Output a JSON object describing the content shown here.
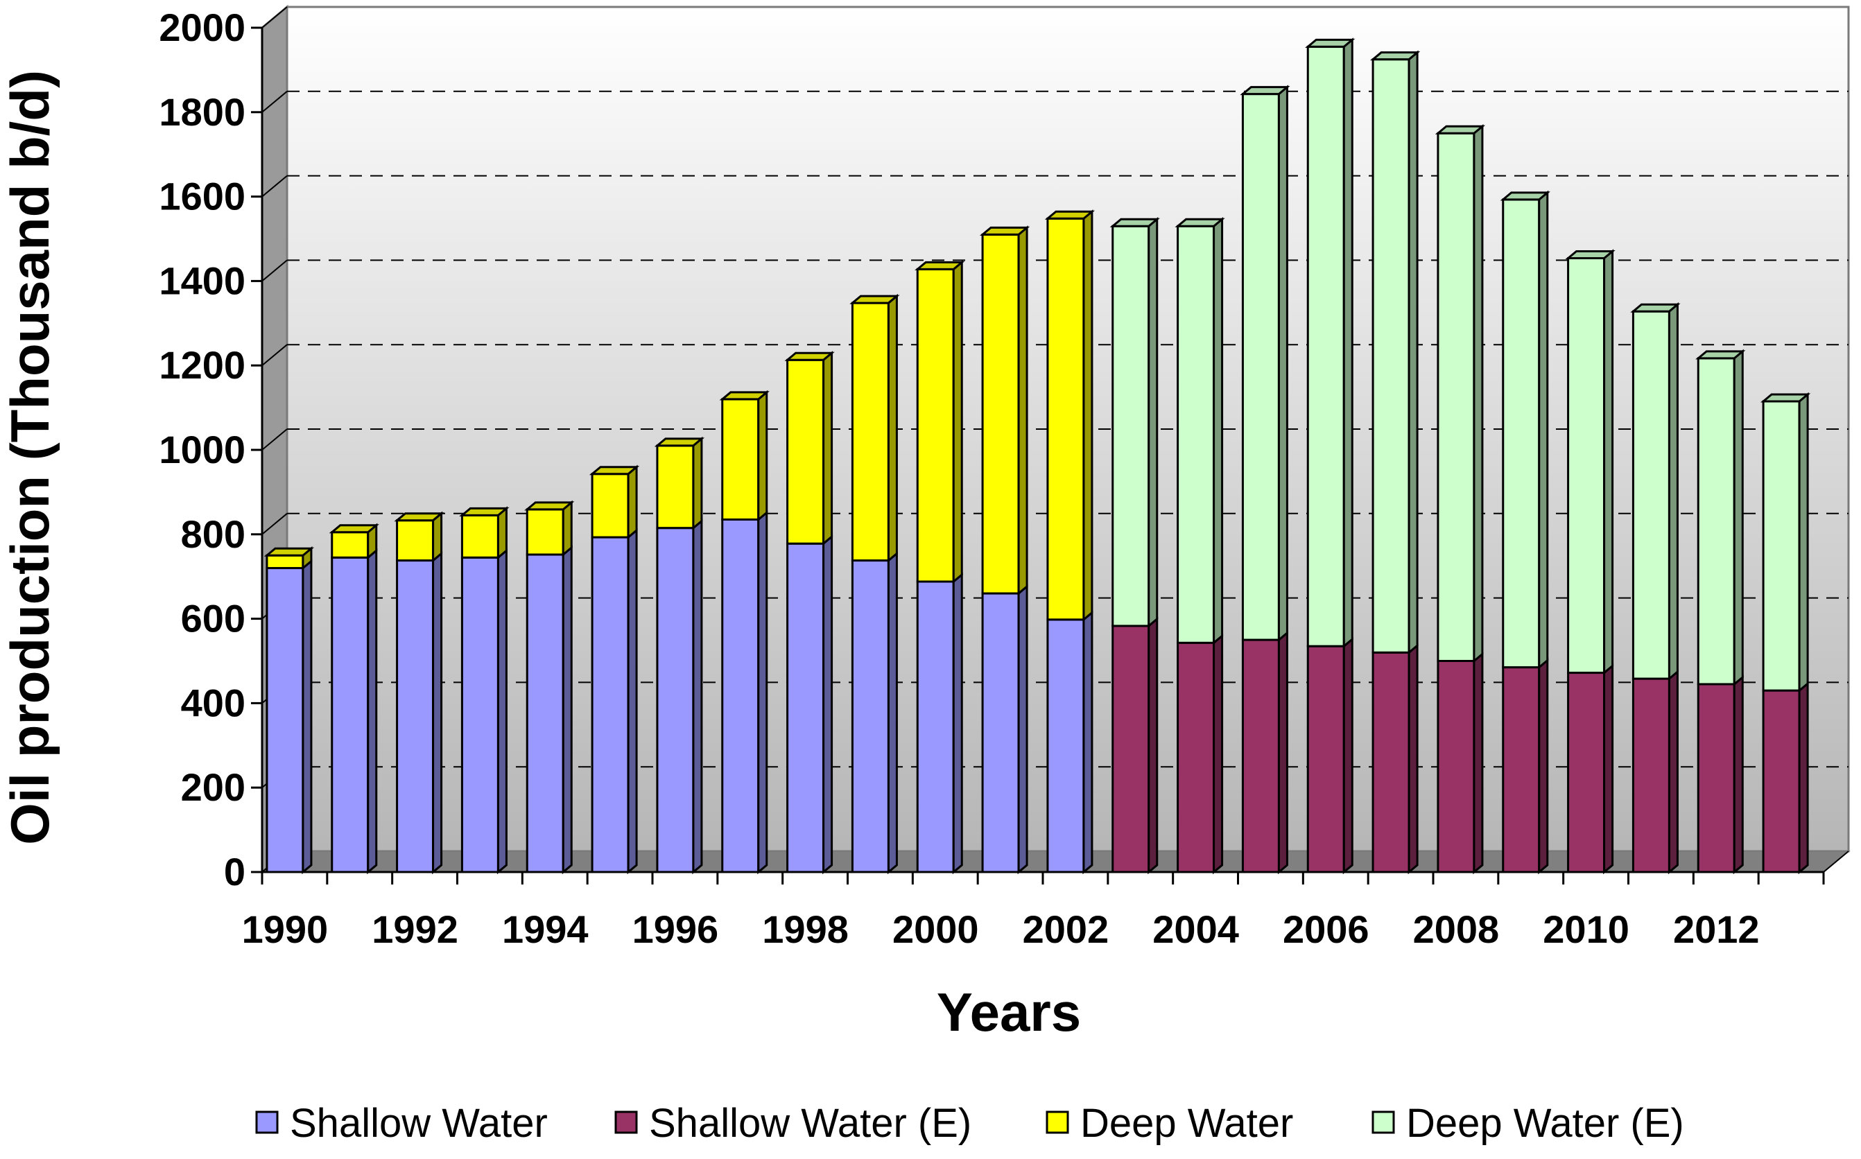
{
  "chart_data": {
    "type": "bar",
    "stacked": true,
    "style": "3d",
    "xlabel": "Years",
    "ylabel": "Oil production (Thousand b/d)",
    "ylim": [
      0,
      2000
    ],
    "yticks": [
      "0",
      "200",
      "400",
      "600",
      "800",
      "1000",
      "1200",
      "1400",
      "1600",
      "1800",
      "2000"
    ],
    "xtick_labels": [
      "1990",
      "1992",
      "1994",
      "1996",
      "1998",
      "2000",
      "2002",
      "2004",
      "2006",
      "2008",
      "2010",
      "2012"
    ],
    "categories": [
      "1990",
      "1991",
      "1992",
      "1993",
      "1994",
      "1995",
      "1996",
      "1997",
      "1998",
      "1999",
      "2000",
      "2001",
      "2002",
      "2003",
      "2004",
      "2005",
      "2006",
      "2007",
      "2008",
      "2009",
      "2010",
      "2011",
      "2012",
      "2013"
    ],
    "series": [
      {
        "name": "Shallow Water",
        "color": "#9999FF",
        "values": [
          720,
          745,
          738,
          745,
          752,
          793,
          815,
          835,
          778,
          738,
          688,
          660,
          598,
          0,
          0,
          0,
          0,
          0,
          0,
          0,
          0,
          0,
          0,
          0
        ]
      },
      {
        "name": "Shallow Water (E)",
        "color": "#993366",
        "values": [
          0,
          0,
          0,
          0,
          0,
          0,
          0,
          0,
          0,
          0,
          0,
          0,
          0,
          583,
          543,
          550,
          535,
          520,
          500,
          485,
          472,
          458,
          445,
          430
        ]
      },
      {
        "name": "Deep Water",
        "color": "#FFFF00",
        "values": [
          30,
          60,
          95,
          100,
          107,
          150,
          195,
          285,
          435,
          610,
          740,
          850,
          950,
          0,
          0,
          0,
          0,
          0,
          0,
          0,
          0,
          0,
          0,
          0
        ]
      },
      {
        "name": "Deep Water (E)",
        "color": "#CCFFCC",
        "values": [
          0,
          0,
          0,
          0,
          0,
          0,
          0,
          0,
          0,
          0,
          0,
          0,
          0,
          947,
          987,
          1293,
          1420,
          1405,
          1250,
          1108,
          982,
          870,
          772,
          685
        ]
      }
    ],
    "legend_position": "bottom",
    "grid": true
  }
}
